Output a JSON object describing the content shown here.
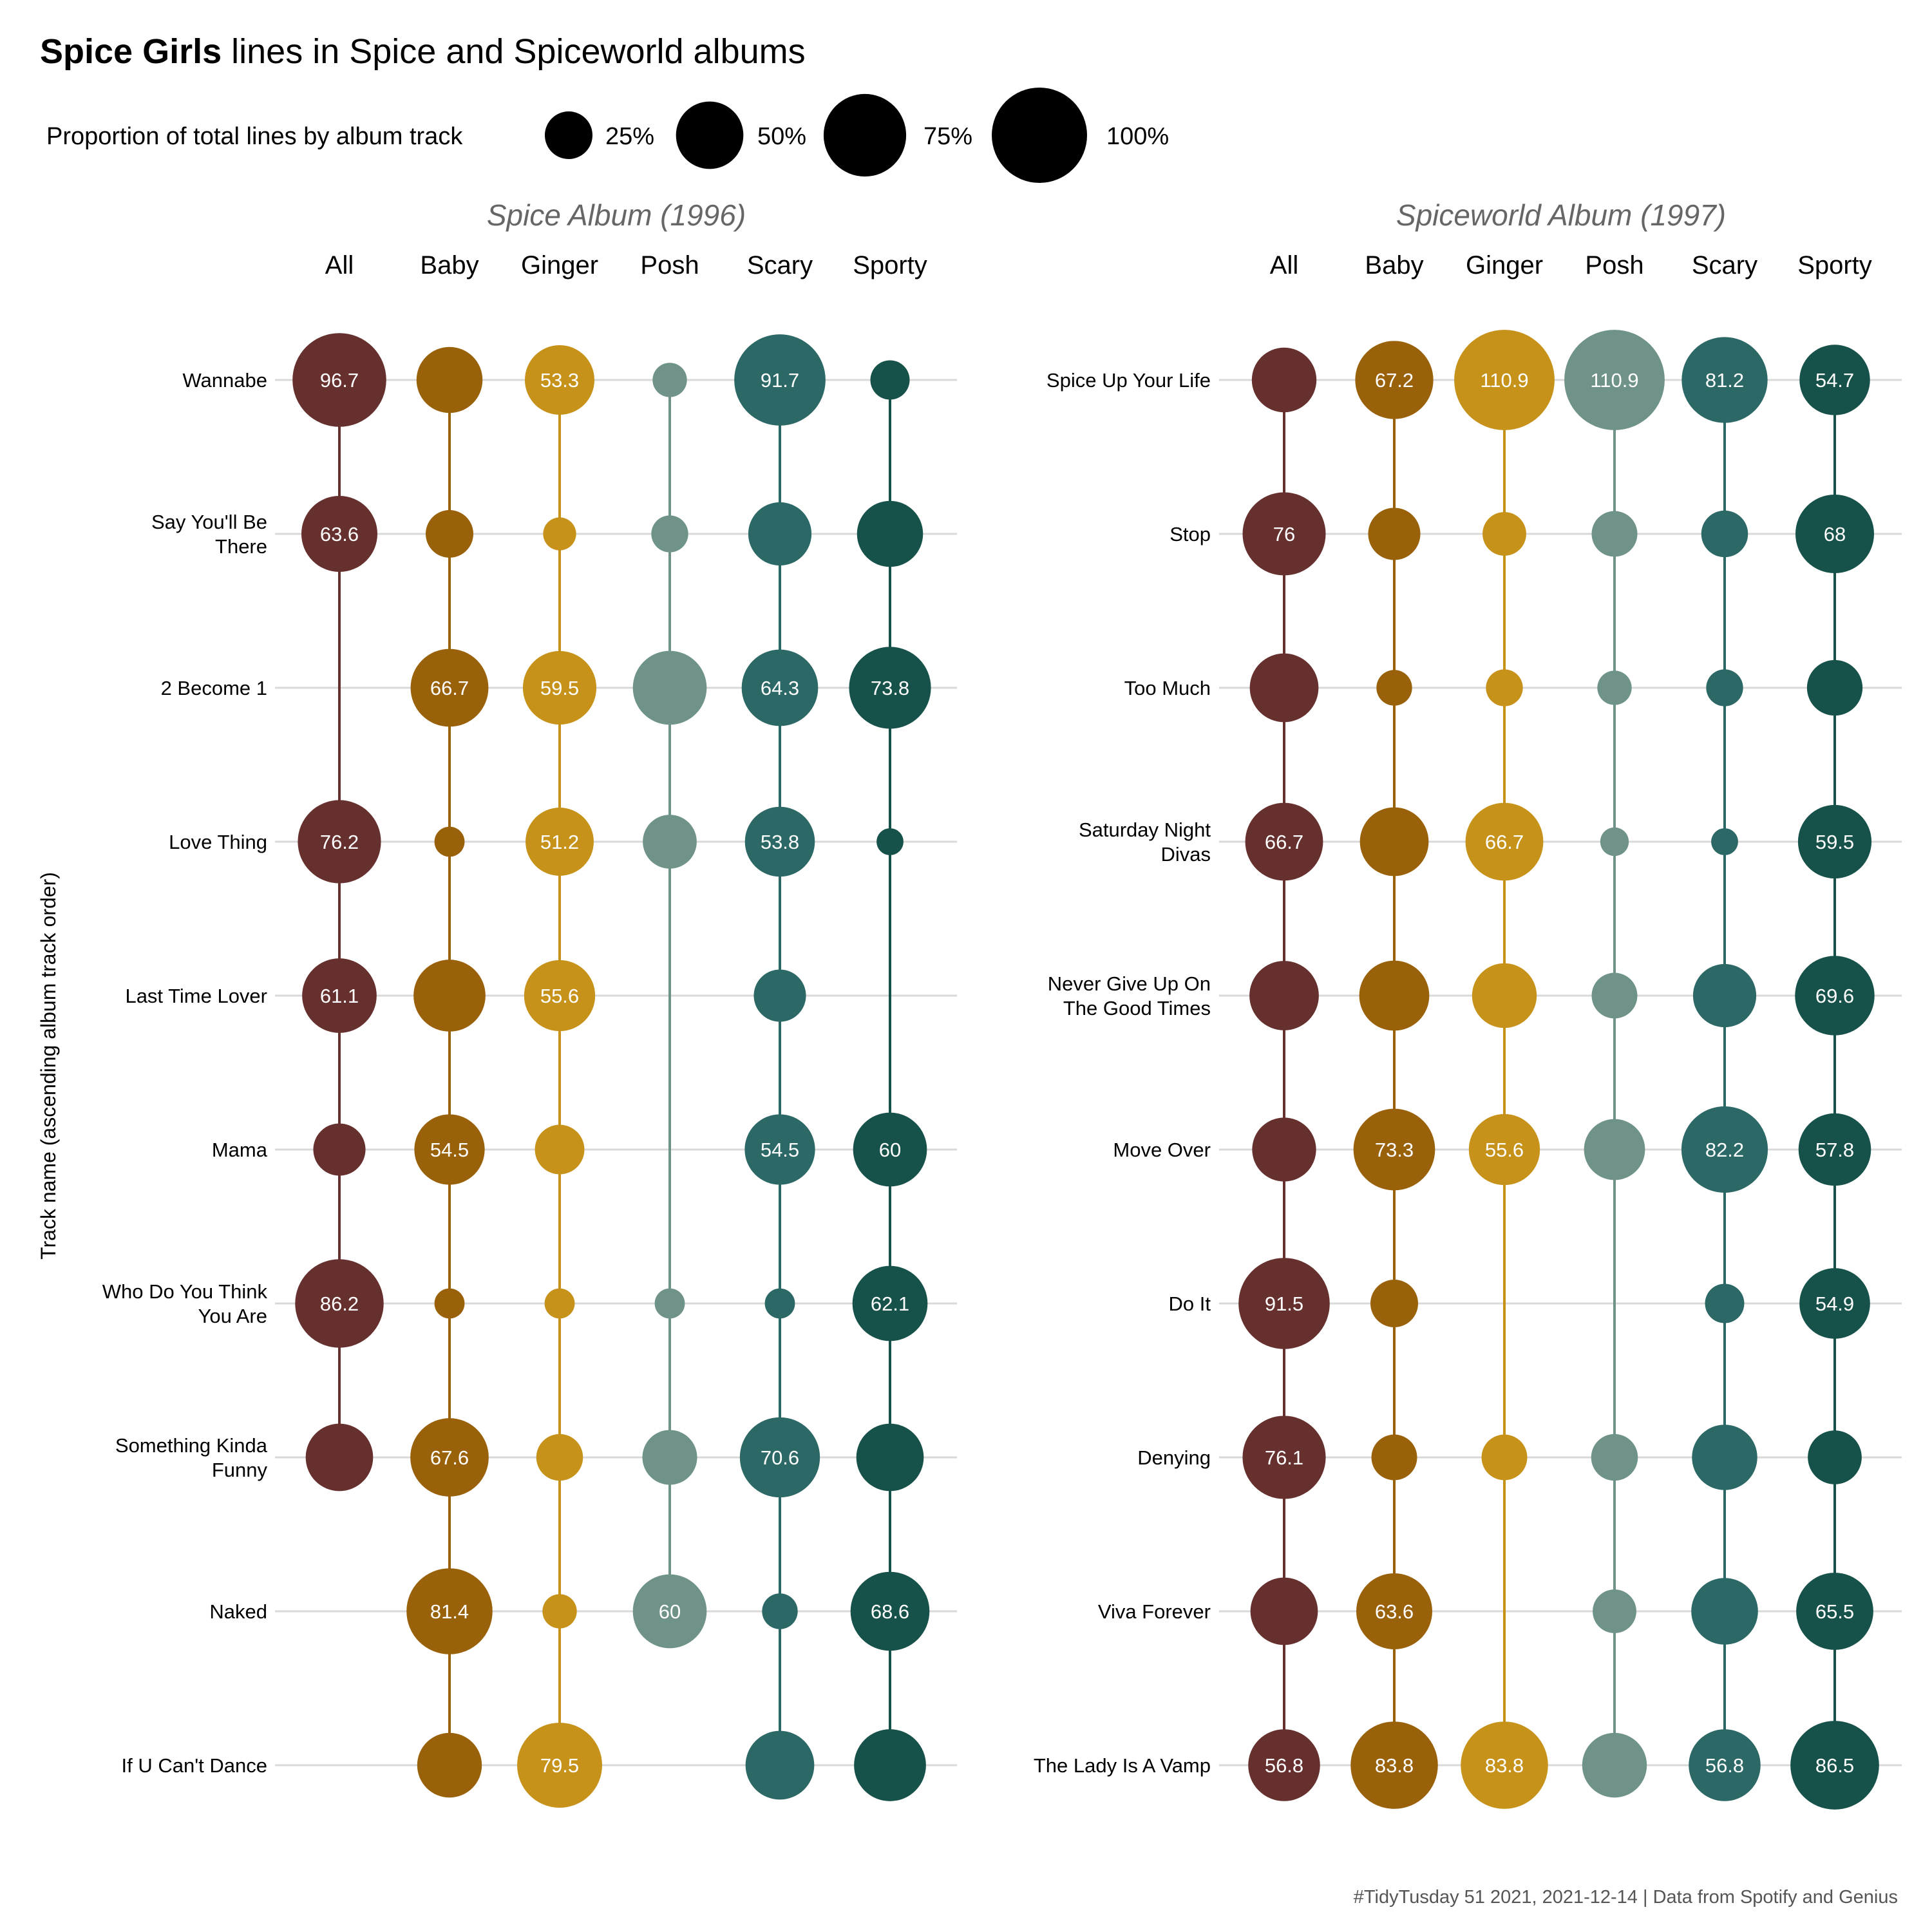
{
  "title": {
    "bold": "Spice Girls",
    "rest": " lines in Spice and Spiceworld albums"
  },
  "legend": {
    "title": "Proportion of total lines by album track",
    "items": [
      {
        "label": "25%",
        "value": 25
      },
      {
        "label": "50%",
        "value": 50
      },
      {
        "label": "75%",
        "value": 75
      },
      {
        "label": "100%",
        "value": 100
      }
    ]
  },
  "ylabel": "Track name (ascending album track order)",
  "caption": "#TidyTusday 51 2021, 2021-12-14 | Data from Spotify and Genius",
  "colors": {
    "All": "#65302e",
    "Baby": "#9a610b",
    "Ginger": "#c6921a",
    "Posh": "#6f9389",
    "Scary": "#2b6866",
    "Sporty": "#17524a",
    "grid": "#d9d9d9"
  },
  "chart_data": [
    {
      "type": "scatter",
      "title": "Spice Album (1996)",
      "columns": [
        "All",
        "Baby",
        "Ginger",
        "Posh",
        "Scary",
        "Sporty"
      ],
      "tracks": [
        {
          "name": "Wannabe",
          "lines": [
            "Wannabe"
          ],
          "values": [
            96.7,
            48,
            53.3,
            13,
            91.7,
            17
          ],
          "labels": [
            "96.7",
            "",
            "53.3",
            "",
            "91.7",
            ""
          ]
        },
        {
          "name": "Say You'll Be There",
          "lines": [
            "Say You'll Be",
            "There"
          ],
          "values": [
            63.6,
            25,
            12,
            15,
            44,
            48
          ],
          "labels": [
            "63.6",
            "",
            "",
            "",
            "",
            ""
          ]
        },
        {
          "name": "2 Become 1",
          "lines": [
            "2 Become 1"
          ],
          "values": [
            null,
            66.7,
            59.5,
            60,
            64.3,
            73.8
          ],
          "labels": [
            "",
            "66.7",
            "59.5",
            "",
            "64.3",
            "73.8"
          ]
        },
        {
          "name": "Love Thing",
          "lines": [
            "Love Thing"
          ],
          "values": [
            76.2,
            10,
            51.2,
            32,
            53.8,
            8
          ],
          "labels": [
            "76.2",
            "",
            "51.2",
            "",
            "53.8",
            ""
          ]
        },
        {
          "name": "Last Time Lover",
          "lines": [
            "Last Time Lover"
          ],
          "values": [
            61.1,
            57,
            55.6,
            null,
            30,
            null
          ],
          "labels": [
            "61.1",
            "",
            "55.6",
            "",
            "",
            ""
          ]
        },
        {
          "name": "Mama",
          "lines": [
            "Mama"
          ],
          "values": [
            30,
            54.5,
            27,
            null,
            54.5,
            60
          ],
          "labels": [
            "",
            "54.5",
            "",
            "",
            "54.5",
            "60"
          ]
        },
        {
          "name": "Who Do You Think You Are",
          "lines": [
            "Who Do You Think",
            "You Are"
          ],
          "values": [
            86.2,
            10,
            10,
            10,
            10,
            62.1
          ],
          "labels": [
            "86.2",
            "",
            "",
            "",
            "",
            "62.1"
          ]
        },
        {
          "name": "Something Kinda Funny",
          "lines": [
            "Something Kinda",
            "Funny"
          ],
          "values": [
            50,
            67.6,
            24,
            33,
            70.6,
            50
          ],
          "labels": [
            "",
            "67.6",
            "",
            "",
            "70.6",
            ""
          ]
        },
        {
          "name": "Naked",
          "lines": [
            "Naked"
          ],
          "values": [
            null,
            81.4,
            13,
            60,
            14,
            68.6
          ],
          "labels": [
            "",
            "81.4",
            "",
            "60",
            "",
            "68.6"
          ]
        },
        {
          "name": "If U Can't Dance",
          "lines": [
            "If U Can't Dance"
          ],
          "values": [
            null,
            46,
            79.5,
            null,
            52,
            57
          ],
          "labels": [
            "",
            "",
            "79.5",
            "",
            "",
            ""
          ]
        }
      ]
    },
    {
      "type": "scatter",
      "title": "Spiceworld Album (1997)",
      "columns": [
        "All",
        "Baby",
        "Ginger",
        "Posh",
        "Scary",
        "Sporty"
      ],
      "tracks": [
        {
          "name": "Spice Up Your Life",
          "lines": [
            "Spice Up Your Life"
          ],
          "values": [
            46,
            67.2,
            110.9,
            110.9,
            81.2,
            54.7
          ],
          "labels": [
            "",
            "67.2",
            "110.9",
            "110.9",
            "81.2",
            "54.7"
          ]
        },
        {
          "name": "Stop",
          "lines": [
            "Stop"
          ],
          "values": [
            76,
            30,
            21,
            23,
            24,
            68
          ],
          "labels": [
            "76",
            "",
            "",
            "",
            "",
            "68"
          ]
        },
        {
          "name": "Too Much",
          "lines": [
            "Too Much"
          ],
          "values": [
            52,
            14,
            15,
            13,
            15,
            34
          ],
          "labels": [
            "",
            "",
            "",
            "",
            "",
            ""
          ]
        },
        {
          "name": "Saturday Night Divas",
          "lines": [
            "Saturday Night",
            "Divas"
          ],
          "values": [
            66.7,
            52,
            66.7,
            9,
            8,
            59.5
          ],
          "labels": [
            "66.7",
            "",
            "66.7",
            "",
            "",
            "59.5"
          ]
        },
        {
          "name": "Never Give Up On The Good Times",
          "lines": [
            "Never Give Up On",
            "The Good Times"
          ],
          "values": [
            53,
            54,
            46,
            23,
            44,
            69.6
          ],
          "labels": [
            "",
            "",
            "",
            "",
            "",
            "69.6"
          ]
        },
        {
          "name": "Move Over",
          "lines": [
            "Move Over"
          ],
          "values": [
            45,
            73.3,
            55.6,
            41,
            82.2,
            57.8
          ],
          "labels": [
            "",
            "73.3",
            "55.6",
            "",
            "82.2",
            "57.8"
          ]
        },
        {
          "name": "Do It",
          "lines": [
            "Do It"
          ],
          "values": [
            91.5,
            25,
            null,
            null,
            17,
            54.9
          ],
          "labels": [
            "91.5",
            "",
            "",
            "",
            "",
            "54.9"
          ]
        },
        {
          "name": "Denying",
          "lines": [
            "Denying"
          ],
          "values": [
            76.1,
            23,
            23,
            24,
            47,
            32
          ],
          "labels": [
            "76.1",
            "",
            "",
            "",
            "",
            ""
          ]
        },
        {
          "name": "Viva Forever",
          "lines": [
            "Viva Forever"
          ],
          "values": [
            50,
            63.6,
            null,
            21,
            49,
            65.5
          ],
          "labels": [
            "",
            "63.6",
            "",
            "",
            "",
            "65.5"
          ]
        },
        {
          "name": "The Lady Is A Vamp",
          "lines": [
            "The Lady Is A Vamp"
          ],
          "values": [
            56.8,
            83.8,
            83.8,
            46,
            56.8,
            86.5
          ],
          "labels": [
            "56.8",
            "83.8",
            "83.8",
            "",
            "56.8",
            "86.5"
          ]
        }
      ]
    }
  ]
}
